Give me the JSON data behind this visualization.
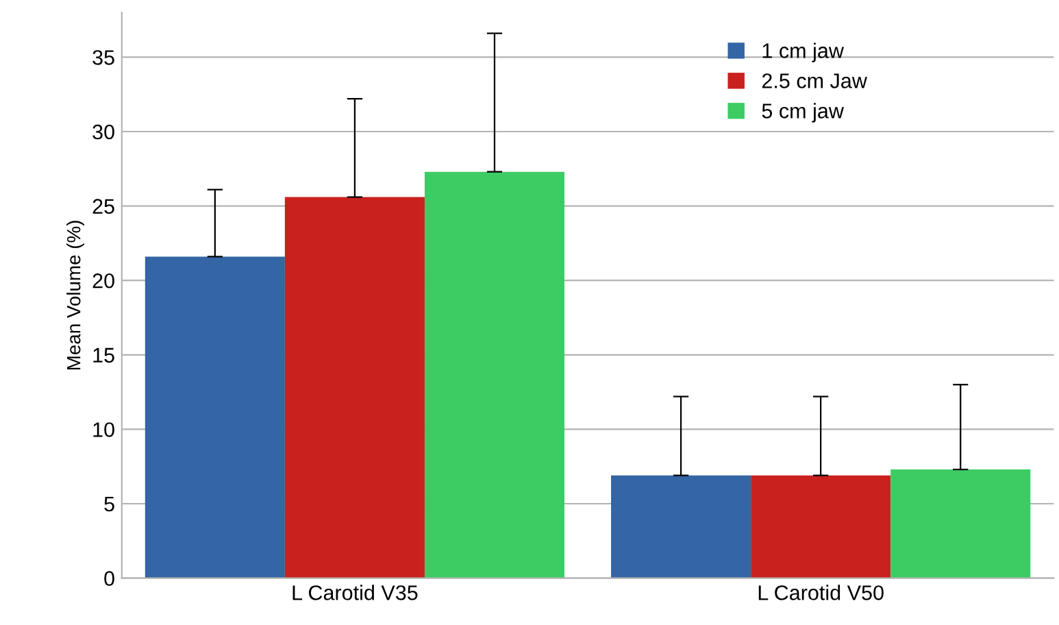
{
  "chart_data": {
    "type": "bar",
    "ylabel": "Mean Volume (%)",
    "categories": [
      "L Carotid V35",
      "L Carotid V50"
    ],
    "series": [
      {
        "name": "1 cm jaw",
        "color": "#3465a4",
        "values": [
          21.6,
          6.9
        ],
        "errors": [
          [
            21.6,
            26.1
          ],
          [
            6.9,
            12.2
          ]
        ]
      },
      {
        "name": "2.5 cm Jaw",
        "color": "#c9211e",
        "values": [
          25.6,
          6.9
        ],
        "errors": [
          [
            25.6,
            32.2
          ],
          [
            6.9,
            12.2
          ]
        ]
      },
      {
        "name": "5 cm jaw",
        "color": "#3dcc64",
        "values": [
          27.3,
          7.3
        ],
        "errors": [
          [
            27.3,
            36.6
          ],
          [
            7.3,
            13.0
          ]
        ]
      }
    ],
    "ylim": [
      0,
      38
    ],
    "yticks": [
      0,
      5,
      10,
      15,
      20,
      25,
      30,
      35
    ],
    "grid": "y",
    "legend": "top right"
  }
}
